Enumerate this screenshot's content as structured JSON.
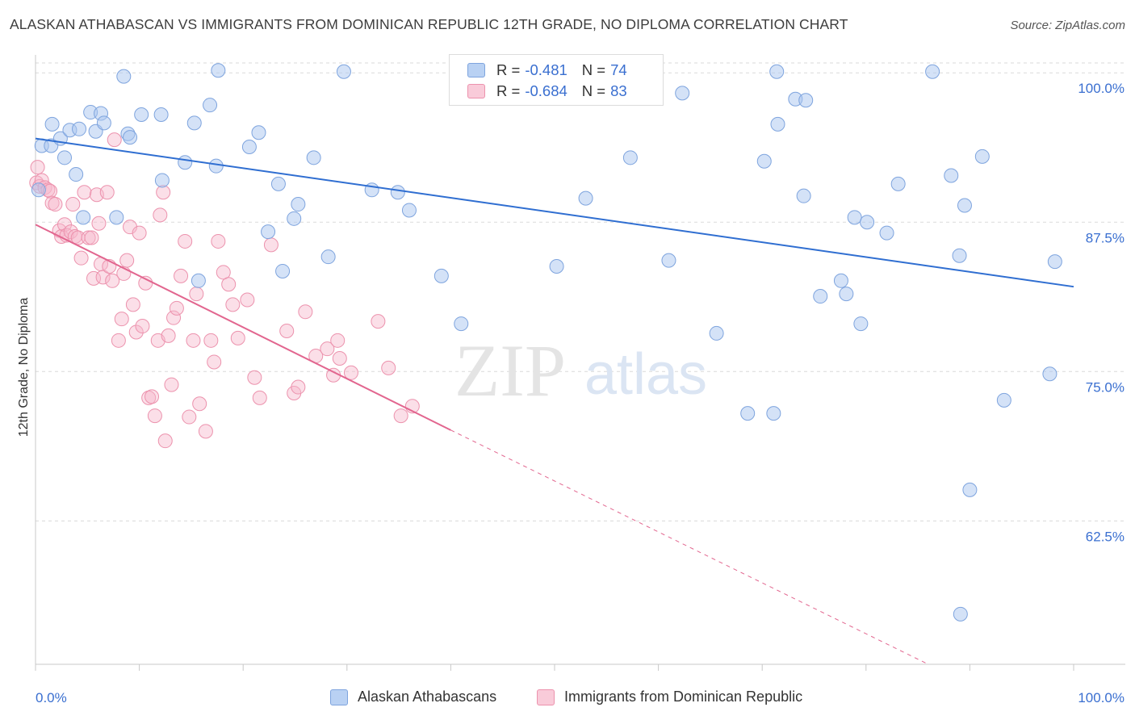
{
  "title": "ALASKAN ATHABASCAN VS IMMIGRANTS FROM DOMINICAN REPUBLIC 12TH GRADE, NO DIPLOMA CORRELATION CHART",
  "source": "Source: ZipAtlas.com",
  "watermark": {
    "zip": "ZIP",
    "atlas": "atlas"
  },
  "legend": {
    "r_key": "R =",
    "n_key": "N =",
    "series": [
      {
        "r": "-0.481",
        "n": "74"
      },
      {
        "r": "-0.684",
        "n": "83"
      }
    ]
  },
  "bottom_legend": [
    "Alaskan Athabascans",
    "Immigrants from Dominican Republic"
  ],
  "colors": {
    "blue_fill": "#a9c6ef",
    "blue_stroke": "#7ea4de",
    "blue_line": "#2f6ed1",
    "pink_fill": "#f6b9cc",
    "pink_stroke": "#ec92ad",
    "pink_line": "#e2668f",
    "tick_label": "#3a6fd0",
    "grid": "#dadada"
  },
  "chart_data": {
    "type": "scatter",
    "title": "ALASKAN ATHABASCAN VS IMMIGRANTS FROM DOMINICAN REPUBLIC 12TH GRADE, NO DIPLOMA CORRELATION CHART",
    "xlabel": "",
    "ylabel": "12th Grade, No Diploma",
    "xlim": [
      0,
      100
    ],
    "ylim": [
      50.5,
      101.5
    ],
    "x_tick_labels": [
      "0.0%",
      "100.0%"
    ],
    "y_ticks": [
      62.5,
      75.0,
      87.5,
      100.0
    ],
    "y_tick_labels": [
      "62.5%",
      "75.0%",
      "87.5%",
      "100.0%"
    ],
    "grid": true,
    "legend_position": "top-center",
    "series": [
      {
        "name": "Alaskan Athabascans",
        "color": "#a9c6ef",
        "trend": {
          "x": [
            0,
            100
          ],
          "y": [
            94.5,
            82.1
          ]
        },
        "points": [
          [
            0.3,
            90.2
          ],
          [
            0.6,
            93.9
          ],
          [
            1.5,
            93.9
          ],
          [
            1.6,
            95.7
          ],
          [
            2.4,
            94.5
          ],
          [
            2.8,
            92.9
          ],
          [
            3.3,
            95.2
          ],
          [
            3.9,
            91.5
          ],
          [
            4.2,
            95.3
          ],
          [
            4.6,
            87.9
          ],
          [
            5.3,
            96.7
          ],
          [
            5.8,
            95.1
          ],
          [
            6.3,
            96.6
          ],
          [
            6.6,
            95.8
          ],
          [
            7.8,
            87.9
          ],
          [
            8.5,
            99.7
          ],
          [
            8.9,
            94.9
          ],
          [
            9.1,
            94.6
          ],
          [
            10.2,
            96.5
          ],
          [
            12.1,
            96.5
          ],
          [
            12.2,
            91.0
          ],
          [
            14.4,
            92.5
          ],
          [
            15.3,
            95.8
          ],
          [
            15.7,
            82.6
          ],
          [
            16.8,
            97.3
          ],
          [
            17.4,
            92.2
          ],
          [
            17.6,
            100.2
          ],
          [
            20.6,
            93.8
          ],
          [
            21.5,
            95.0
          ],
          [
            22.4,
            86.7
          ],
          [
            23.4,
            90.7
          ],
          [
            23.8,
            83.4
          ],
          [
            24.9,
            87.8
          ],
          [
            25.3,
            89.0
          ],
          [
            26.8,
            92.9
          ],
          [
            28.2,
            84.6
          ],
          [
            29.7,
            100.1
          ],
          [
            32.4,
            90.2
          ],
          [
            34.9,
            90.0
          ],
          [
            36.0,
            88.5
          ],
          [
            39.1,
            83.0
          ],
          [
            41.0,
            79.0
          ],
          [
            50.2,
            83.8
          ],
          [
            53.0,
            89.5
          ],
          [
            57.3,
            92.9
          ],
          [
            61.0,
            84.3
          ],
          [
            62.3,
            98.3
          ],
          [
            65.6,
            78.2
          ],
          [
            68.6,
            71.5
          ],
          [
            70.2,
            92.6
          ],
          [
            71.1,
            71.5
          ],
          [
            71.4,
            100.1
          ],
          [
            71.5,
            95.7
          ],
          [
            73.2,
            97.8
          ],
          [
            74.2,
            97.7
          ],
          [
            74.0,
            89.7
          ],
          [
            75.6,
            81.3
          ],
          [
            77.6,
            82.6
          ],
          [
            78.1,
            81.5
          ],
          [
            78.9,
            87.9
          ],
          [
            80.1,
            87.5
          ],
          [
            79.5,
            79.0
          ],
          [
            82.0,
            86.6
          ],
          [
            83.1,
            90.7
          ],
          [
            86.4,
            100.1
          ],
          [
            88.2,
            91.4
          ],
          [
            89.0,
            84.7
          ],
          [
            89.1,
            54.7
          ],
          [
            89.5,
            88.9
          ],
          [
            91.2,
            93.0
          ],
          [
            90.0,
            65.1
          ],
          [
            93.3,
            72.6
          ],
          [
            97.7,
            74.8
          ],
          [
            98.2,
            84.2
          ]
        ]
      },
      {
        "name": "Immigrants from Dominican Republic",
        "color": "#f6b9cc",
        "trend": {
          "x": [
            0,
            40
          ],
          "y": [
            87.3,
            70.1
          ]
        },
        "trend_dashed": {
          "x": [
            40,
            86.0
          ],
          "y": [
            70.1,
            50.5
          ]
        },
        "points": [
          [
            0.1,
            90.8
          ],
          [
            0.2,
            92.1
          ],
          [
            0.4,
            90.5
          ],
          [
            0.6,
            91.0
          ],
          [
            0.9,
            90.4
          ],
          [
            1.2,
            90.2
          ],
          [
            1.4,
            90.1
          ],
          [
            1.6,
            89.1
          ],
          [
            1.9,
            89.0
          ],
          [
            2.3,
            86.8
          ],
          [
            2.5,
            86.3
          ],
          [
            2.8,
            87.3
          ],
          [
            3.0,
            86.4
          ],
          [
            3.4,
            86.7
          ],
          [
            3.6,
            89.0
          ],
          [
            3.8,
            86.3
          ],
          [
            4.1,
            86.2
          ],
          [
            4.4,
            84.5
          ],
          [
            4.7,
            90.0
          ],
          [
            5.1,
            86.2
          ],
          [
            5.4,
            86.2
          ],
          [
            5.6,
            82.8
          ],
          [
            5.9,
            89.8
          ],
          [
            6.1,
            87.4
          ],
          [
            6.3,
            84.0
          ],
          [
            6.5,
            82.9
          ],
          [
            6.9,
            90.0
          ],
          [
            7.1,
            83.8
          ],
          [
            7.4,
            82.6
          ],
          [
            7.6,
            94.4
          ],
          [
            8.0,
            77.6
          ],
          [
            8.3,
            79.4
          ],
          [
            8.5,
            83.2
          ],
          [
            8.8,
            84.3
          ],
          [
            9.1,
            87.1
          ],
          [
            9.4,
            80.6
          ],
          [
            9.7,
            78.3
          ],
          [
            10.0,
            86.6
          ],
          [
            10.3,
            78.8
          ],
          [
            10.6,
            82.4
          ],
          [
            10.9,
            72.8
          ],
          [
            11.2,
            72.9
          ],
          [
            11.5,
            71.3
          ],
          [
            11.8,
            77.6
          ],
          [
            12.0,
            88.1
          ],
          [
            12.3,
            90.0
          ],
          [
            12.5,
            69.2
          ],
          [
            12.8,
            78.0
          ],
          [
            13.1,
            73.9
          ],
          [
            13.3,
            79.5
          ],
          [
            13.6,
            80.3
          ],
          [
            14.0,
            83.0
          ],
          [
            14.4,
            85.9
          ],
          [
            14.8,
            71.2
          ],
          [
            15.2,
            77.6
          ],
          [
            15.5,
            81.5
          ],
          [
            15.8,
            72.3
          ],
          [
            16.4,
            70.0
          ],
          [
            16.9,
            77.6
          ],
          [
            17.2,
            75.8
          ],
          [
            17.6,
            85.9
          ],
          [
            18.1,
            83.3
          ],
          [
            18.6,
            82.3
          ],
          [
            19.0,
            80.6
          ],
          [
            19.5,
            77.8
          ],
          [
            20.4,
            81.0
          ],
          [
            21.1,
            74.5
          ],
          [
            21.6,
            72.8
          ],
          [
            22.7,
            85.6
          ],
          [
            24.2,
            78.4
          ],
          [
            24.9,
            73.2
          ],
          [
            25.3,
            73.7
          ],
          [
            26.0,
            80.0
          ],
          [
            27.0,
            76.3
          ],
          [
            28.1,
            76.9
          ],
          [
            28.7,
            74.7
          ],
          [
            29.1,
            77.6
          ],
          [
            29.3,
            76.1
          ],
          [
            30.4,
            74.9
          ],
          [
            33.0,
            79.2
          ],
          [
            34.0,
            75.3
          ],
          [
            35.2,
            71.3
          ],
          [
            36.3,
            72.1
          ]
        ]
      }
    ]
  }
}
